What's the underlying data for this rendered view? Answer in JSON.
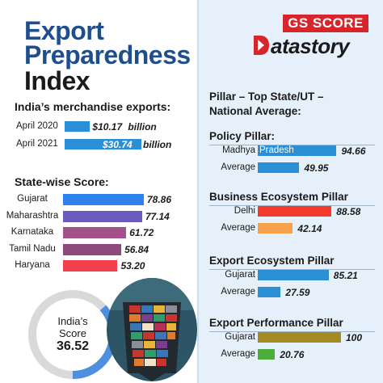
{
  "header": {
    "title_line1": "Export",
    "title_line2": "Preparedness",
    "title_line3": "Index"
  },
  "logo": {
    "top": "GS SCORE",
    "bottom": "atastory"
  },
  "merch": {
    "heading": "India’s merchandise exports:",
    "rows": [
      {
        "label": "April 2020",
        "value": 10.17,
        "value_text": "$10.17",
        "unit": "billion",
        "color": "#2b8fd6"
      },
      {
        "label": "April 2021",
        "value": 30.74,
        "value_text": "$30.74",
        "unit": "billion",
        "color": "#2b8fd6"
      }
    ]
  },
  "states": {
    "heading": "State-wise Score:",
    "rows": [
      {
        "label": "Gujarat",
        "value": 78.86,
        "value_text": "78.86",
        "color": "#2f80ed"
      },
      {
        "label": "Maharashtra",
        "value": 77.14,
        "value_text": "77.14",
        "color": "#6a5bbf"
      },
      {
        "label": "Karnataka",
        "value": 61.72,
        "value_text": "61.72",
        "color": "#a4508b"
      },
      {
        "label": "Tamil Nadu",
        "value": 56.84,
        "value_text": "56.84",
        "color": "#8f4a7d"
      },
      {
        "label": "Haryana",
        "value": 53.2,
        "value_text": "53.20",
        "color": "#f23f4e"
      }
    ]
  },
  "india_score": {
    "line1": "India’s",
    "line2": "Score",
    "value": 36.52,
    "value_text": "36.52",
    "max": 100,
    "color": "#4f8fe0",
    "track_color": "#d9d9d9"
  },
  "pillars_heading": {
    "line1": "Pillar – Top State/UT –",
    "line2": "National Average:"
  },
  "pillars": [
    {
      "name": "Policy Pillar:",
      "rows": [
        {
          "label": "Madhya",
          "inbar": "Pradesh",
          "value": 94.66,
          "value_text": "94.66",
          "color": "#2b8fd6"
        },
        {
          "label": "Average",
          "value": 49.95,
          "value_text": "49.95",
          "color": "#2b8fd6"
        }
      ]
    },
    {
      "name": "Business Ecosystem Pillar",
      "rows": [
        {
          "label": "Delhi",
          "value": 88.58,
          "value_text": "88.58",
          "color": "#f2392c"
        },
        {
          "label": "Average",
          "value": 42.14,
          "value_text": "42.14",
          "color": "#f7a14a"
        }
      ]
    },
    {
      "name": "Export Ecosystem Pillar",
      "rows": [
        {
          "label": "Gujarat",
          "value": 85.21,
          "value_text": "85.21",
          "color": "#2b8fd6"
        },
        {
          "label": "Average",
          "value": 27.59,
          "value_text": "27.59",
          "color": "#2b8fd6"
        }
      ]
    },
    {
      "name": "Export Performance Pillar",
      "rows": [
        {
          "label": "Gujarat",
          "value": 100,
          "value_text": "100",
          "color": "#a38b22"
        },
        {
          "label": "Average",
          "value": 20.76,
          "value_text": "20.76",
          "color": "#4caf3d"
        }
      ]
    }
  ],
  "chart_data": [
    {
      "type": "bar",
      "title": "India’s merchandise exports:",
      "categories": [
        "April 2020",
        "April 2021"
      ],
      "values": [
        10.17,
        30.74
      ],
      "ylabel": "billion"
    },
    {
      "type": "bar",
      "title": "State-wise Score:",
      "categories": [
        "Gujarat",
        "Maharashtra",
        "Karnataka",
        "Tamil Nadu",
        "Haryana"
      ],
      "values": [
        78.86,
        77.14,
        61.72,
        56.84,
        53.2
      ]
    },
    {
      "type": "pie",
      "title": "India’s Score",
      "values": [
        36.52
      ],
      "ylim": [
        0,
        100
      ]
    },
    {
      "type": "bar",
      "title": "Pillar – Top State/UT – National Average:",
      "series": [
        {
          "name": "Policy Pillar:",
          "categories": [
            "Madhya Pradesh",
            "Average"
          ],
          "values": [
            94.66,
            49.95
          ]
        },
        {
          "name": "Business Ecosystem Pillar",
          "categories": [
            "Delhi",
            "Average"
          ],
          "values": [
            88.58,
            42.14
          ]
        },
        {
          "name": "Export Ecosystem Pillar",
          "categories": [
            "Gujarat",
            "Average"
          ],
          "values": [
            85.21,
            27.59
          ]
        },
        {
          "name": "Export Performance Pillar",
          "categories": [
            "Gujarat",
            "Average"
          ],
          "values": [
            100,
            20.76
          ]
        }
      ]
    }
  ]
}
